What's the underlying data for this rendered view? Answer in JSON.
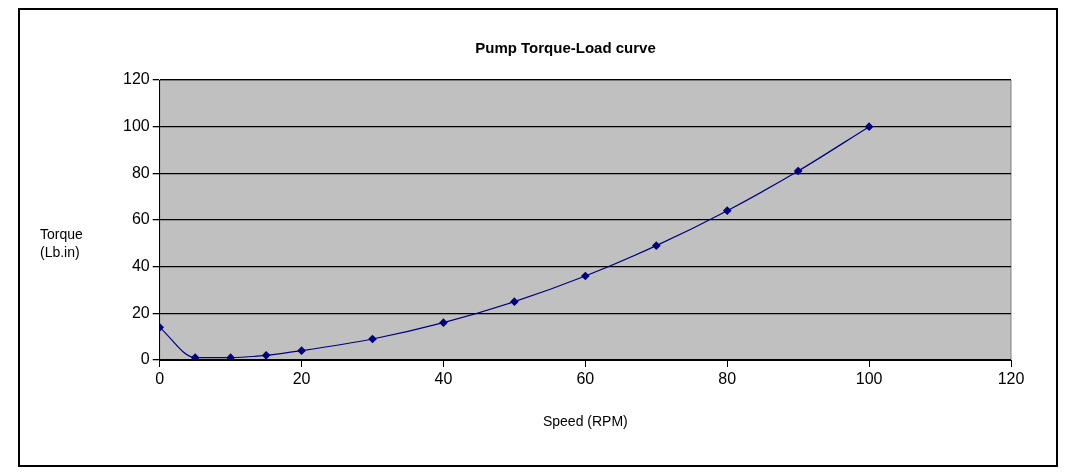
{
  "chart_data": {
    "type": "line",
    "title": "Pump Torque-Load curve",
    "xlabel": "Speed (RPM)",
    "ylabel": "Torque\n(Lb.in)",
    "x": [
      0,
      5,
      10,
      15,
      20,
      30,
      40,
      50,
      60,
      70,
      80,
      90,
      100
    ],
    "series": [
      {
        "color": "#000080",
        "values": [
          14,
          1,
          1,
          2,
          4,
          9,
          16,
          25,
          36,
          49,
          64,
          81,
          100
        ]
      }
    ],
    "xlim": [
      0,
      120
    ],
    "xticks": [
      0,
      20,
      40,
      60,
      80,
      100,
      120
    ],
    "ylim": [
      0,
      120
    ],
    "yticks": [
      0,
      20,
      40,
      60,
      80,
      100,
      120
    ],
    "grid": "y",
    "legend": false,
    "marker": "diamond",
    "line_style": "solid"
  }
}
